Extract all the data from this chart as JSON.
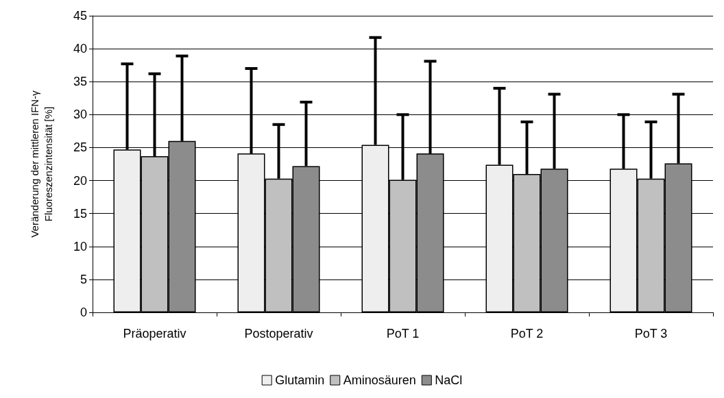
{
  "chart_data": {
    "type": "bar",
    "ylabel": "Veränderung der mittleren IFN-γ\nFluoreszenzintensität [%]",
    "categories": [
      "Präoperativ",
      "Postoperativ",
      "PoT 1",
      "PoT 2",
      "PoT 3"
    ],
    "series": [
      {
        "name": "Glutamin",
        "color": "#eeeeee",
        "values": [
          24.7,
          24.1,
          25.4,
          22.4,
          21.8
        ],
        "errors": [
          [
            24.7,
            37.7
          ],
          [
            24.1,
            37.0
          ],
          [
            25.4,
            41.7
          ],
          [
            22.4,
            34.0
          ],
          [
            21.8,
            30.0
          ]
        ]
      },
      {
        "name": "Aminosäuren",
        "color": "#c0c0c0",
        "values": [
          23.7,
          20.3,
          20.1,
          21.0,
          20.3
        ],
        "errors": [
          [
            23.7,
            36.2
          ],
          [
            20.3,
            28.5
          ],
          [
            20.1,
            30.0
          ],
          [
            21.0,
            28.9
          ],
          [
            20.3,
            28.9
          ]
        ]
      },
      {
        "name": "NaCl",
        "color": "#8c8c8c",
        "values": [
          26.0,
          22.2,
          24.1,
          21.8,
          22.6
        ],
        "errors": [
          [
            26.0,
            38.9
          ],
          [
            22.2,
            31.9
          ],
          [
            24.1,
            38.1
          ],
          [
            21.8,
            33.1
          ],
          [
            22.6,
            33.1
          ]
        ]
      }
    ],
    "ylim": [
      0,
      45
    ],
    "yticks": [
      0,
      5,
      10,
      15,
      20,
      25,
      30,
      35,
      40,
      45
    ],
    "grid": "y",
    "legend": "bottom"
  }
}
